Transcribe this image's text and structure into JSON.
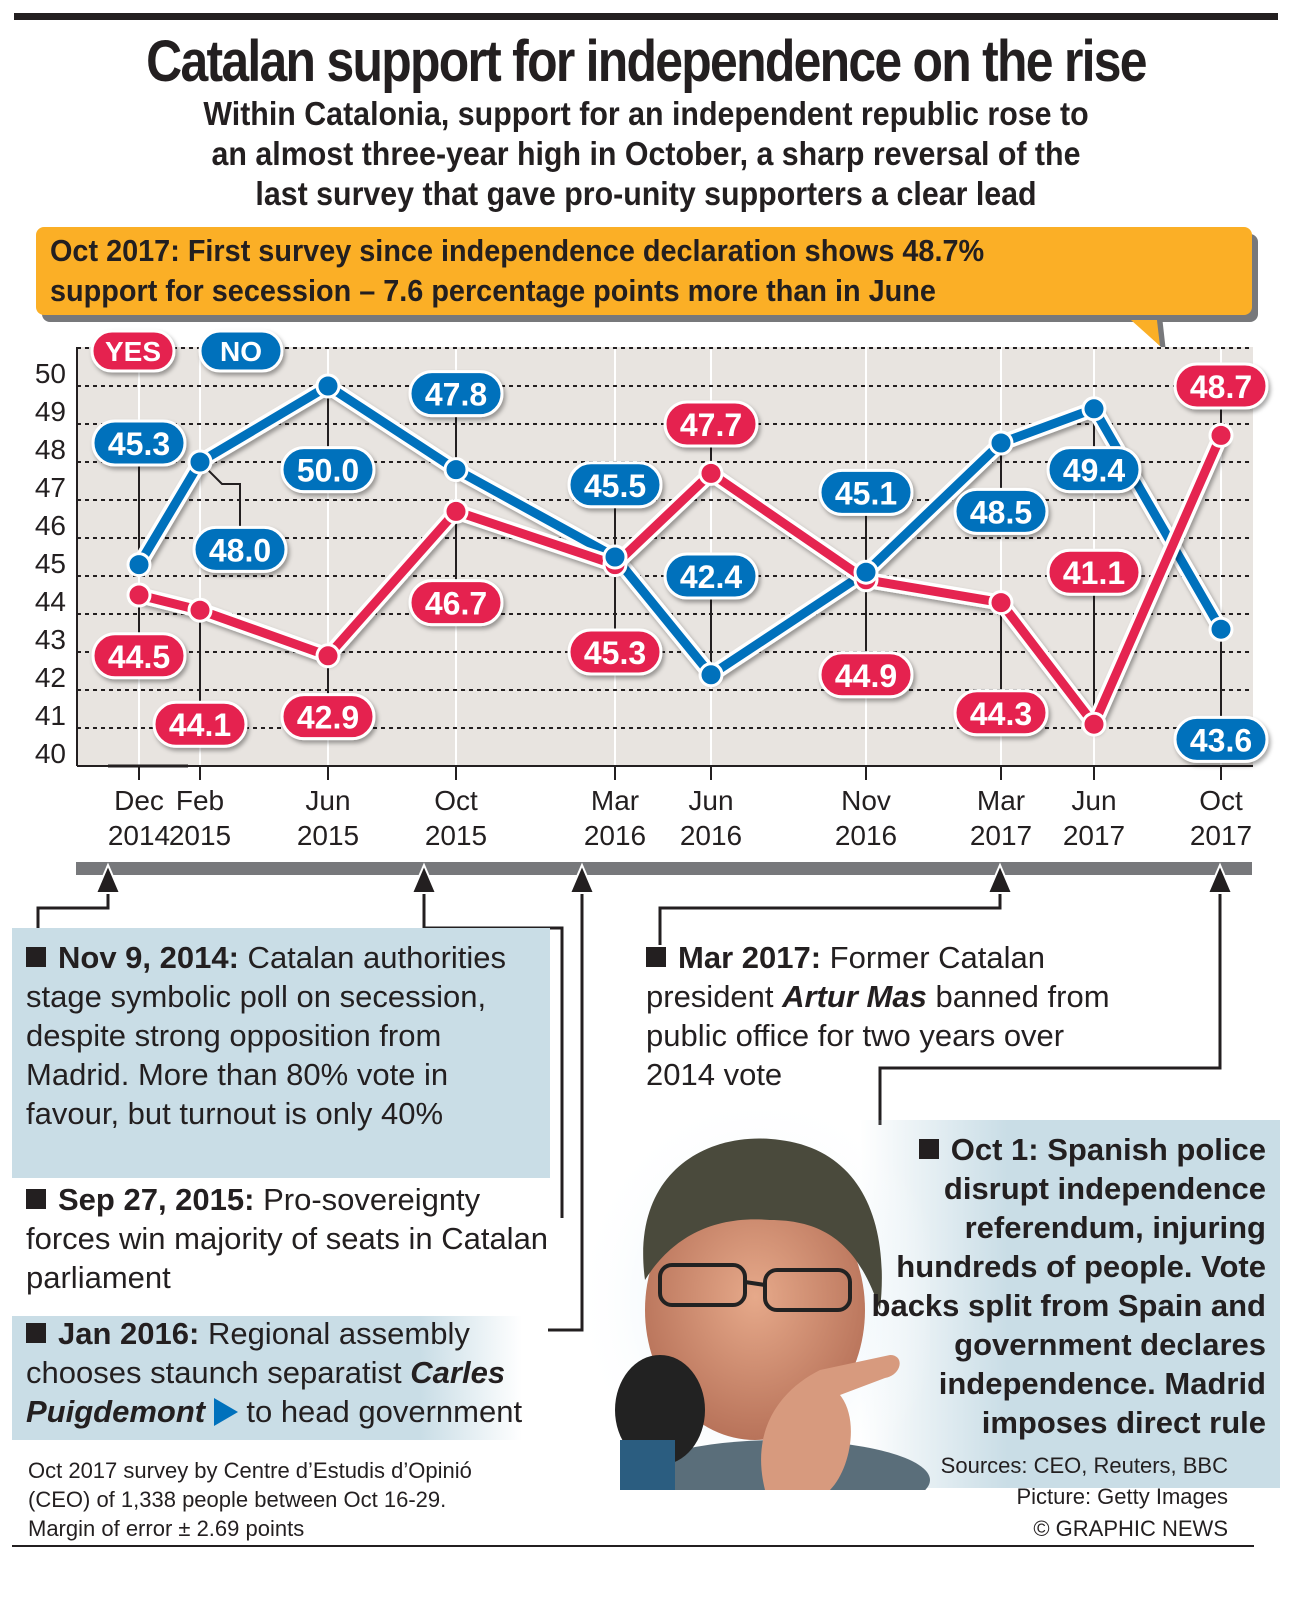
{
  "header": {
    "title": "Catalan support for independence on the rise",
    "subtitle_lines": [
      "Within Catalonia, support for an independent republic rose to",
      "an almost three-year high in October, a sharp reversal of the",
      "last survey that gave pro-unity supporters a clear lead"
    ]
  },
  "callout": {
    "lines": [
      "Oct 2017: First survey since independence declaration shows 48.7%",
      "support for secession – 7.6 percentage points more than in June"
    ]
  },
  "colors": {
    "yes": "#e52450",
    "no": "#0071bc",
    "callout": "#fbaf26",
    "plot_bg": "#e8e4e0",
    "event_box": "#c9dde6",
    "timeline": "#77787b"
  },
  "chart_data": {
    "type": "line",
    "title": "Catalan support for independence on the rise",
    "xlabel": "",
    "ylabel": "",
    "ylim": [
      40,
      51
    ],
    "yticks": [
      "40",
      "41",
      "42",
      "43",
      "44",
      "45",
      "46",
      "47",
      "48",
      "49",
      "50"
    ],
    "grid": true,
    "legend": "top-left",
    "categories": [
      {
        "month": "Dec",
        "year": "2014"
      },
      {
        "month": "Feb",
        "year": "2015"
      },
      {
        "month": "Jun",
        "year": "2015"
      },
      {
        "month": "Oct",
        "year": "2015"
      },
      {
        "month": "Mar",
        "year": "2016"
      },
      {
        "month": "Jun",
        "year": "2016"
      },
      {
        "month": "Nov",
        "year": "2016"
      },
      {
        "month": "Mar",
        "year": "2017"
      },
      {
        "month": "Jun",
        "year": "2017"
      },
      {
        "month": "Oct",
        "year": "2017"
      }
    ],
    "series": [
      {
        "name": "YES",
        "values": [
          44.5,
          44.1,
          42.9,
          46.7,
          45.3,
          47.7,
          44.9,
          44.3,
          41.1,
          48.7
        ],
        "labels": [
          "44.5",
          "44.1",
          "42.9",
          "46.7",
          "45.3",
          "47.7",
          "44.9",
          "44.3",
          "41.1",
          "48.7"
        ]
      },
      {
        "name": "NO",
        "values": [
          45.3,
          48.0,
          50.0,
          47.8,
          45.5,
          42.4,
          45.1,
          48.5,
          49.4,
          43.6
        ],
        "labels": [
          "45.3",
          "48.0",
          "50.0",
          "47.8",
          "45.5",
          "42.4",
          "45.1",
          "48.5",
          "49.4",
          "43.6"
        ]
      }
    ]
  },
  "events": {
    "nov2014": {
      "date": "Nov 9, 2014:",
      "text": " Catalan authorities stage symbolic poll on secession, despite strong opposition from Madrid. More than 80% vote in favour, but turnout is only 40%"
    },
    "sep2015": {
      "date": "Sep 27, 2015:",
      "text": " Pro-sovereignty forces win majority of seats in Catalan parliament"
    },
    "jan2016": {
      "date": "Jan 2016:",
      "text": " Regional assembly chooses staunch separatist ",
      "name": "Carles Puigdemont",
      "text2": " to head government"
    },
    "mar2017": {
      "date": "Mar 2017:",
      "text": " Former Catalan president ",
      "name": "Artur Mas",
      "text2": " banned from public office for two years over 2014 vote"
    },
    "oct2017": {
      "date": "Oct 1:",
      "text": " Spanish police disrupt independence referendum, injuring hundreds of people. Vote backs split from Spain and government declares independence. Madrid imposes direct rule"
    }
  },
  "footer": {
    "note_lines": [
      "Oct 2017 survey by Centre d’Estudis d’Opinió",
      "(CEO) of 1,338 people between Oct 16-29.",
      "Margin of error ± 2.69 points"
    ],
    "sources": "Sources: CEO, Reuters, BBC",
    "picture": "Picture: Getty Images",
    "copyright": "© GRAPHIC NEWS"
  },
  "photo": {
    "subject": "portrait-photo"
  }
}
